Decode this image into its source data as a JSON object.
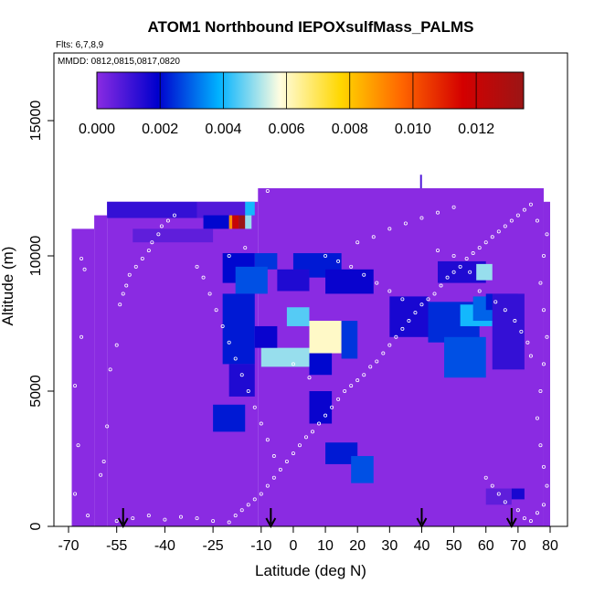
{
  "chart_data": {
    "type": "heatmap",
    "title": "ATOM1 Northbound IEPOXsulfMass_PALMS",
    "flights_label": "Flts: 6,7,8,9",
    "dates_label": "MMDD: 0812,0815,0817,0820",
    "xlabel": "Latitude (deg N)",
    "ylabel": "Altitude (m)",
    "xlim": [
      -70,
      80
    ],
    "ylim": [
      0,
      17500
    ],
    "x_ticks": [
      "-70",
      "-55",
      "-40",
      "-25",
      "-10",
      "0",
      "10",
      "20",
      "30",
      "40",
      "50",
      "60",
      "70",
      "80"
    ],
    "x_tick_values": [
      -70,
      -55,
      -40,
      -25,
      -10,
      0,
      10,
      20,
      30,
      40,
      50,
      60,
      70,
      80
    ],
    "y_ticks": [
      "0",
      "5000",
      "10000",
      "15000"
    ],
    "y_tick_values": [
      0,
      5000,
      10000,
      15000
    ],
    "colorbar": {
      "range": [
        0,
        0.0135
      ],
      "tick_labels": [
        "0.000",
        "0.002",
        "0.004",
        "0.006",
        "0.008",
        "0.010",
        "0.012"
      ],
      "tick_values": [
        0,
        0.002,
        0.004,
        0.006,
        0.008,
        0.01,
        0.012
      ],
      "colors": [
        "#8a2be2",
        "#0000cd",
        "#00b2ff",
        "#fffde0",
        "#ffd700",
        "#ff6600",
        "#d40000",
        "#9b1515"
      ]
    },
    "background_value": 0.0,
    "envelope": [
      {
        "x0": -69,
        "x1": -62,
        "ymax": 11000
      },
      {
        "x0": -62,
        "x1": -58,
        "ymax": 11500
      },
      {
        "x0": -58,
        "x1": -11,
        "ymax": 12000
      },
      {
        "x0": -11,
        "x1": 78,
        "ymax": 12500
      },
      {
        "x0": 78,
        "x1": 80,
        "ymax": 12000
      }
    ],
    "cells": [
      {
        "x0": -58,
        "x1": -30,
        "y0": 11400,
        "y1": 12000,
        "v": 0.0012
      },
      {
        "x0": -30,
        "x1": -15,
        "y0": 11400,
        "y1": 12000,
        "v": 0.0008
      },
      {
        "x0": -28,
        "x1": -20,
        "y0": 11000,
        "y1": 11500,
        "v": 0.002
      },
      {
        "x0": -20,
        "x1": -19,
        "y0": 11000,
        "y1": 11500,
        "v": 0.009
      },
      {
        "x0": -19,
        "x1": -17,
        "y0": 11000,
        "y1": 11500,
        "v": 0.012
      },
      {
        "x0": -17,
        "x1": -15,
        "y0": 11000,
        "y1": 11500,
        "v": 0.0135
      },
      {
        "x0": -15,
        "x1": -13,
        "y0": 11000,
        "y1": 11500,
        "v": 0.005
      },
      {
        "x0": -15,
        "x1": -12,
        "y0": 11500,
        "y1": 12000,
        "v": 0.004
      },
      {
        "x0": -50,
        "x1": -25,
        "y0": 10500,
        "y1": 11000,
        "v": 0.0006
      },
      {
        "x0": -22,
        "x1": -12,
        "y0": 9000,
        "y1": 10100,
        "v": 0.002
      },
      {
        "x0": -12,
        "x1": -5,
        "y0": 9500,
        "y1": 10100,
        "v": 0.0025
      },
      {
        "x0": 0,
        "x1": 15,
        "y0": 9200,
        "y1": 10100,
        "v": 0.0022
      },
      {
        "x0": 10,
        "x1": 25,
        "y0": 8600,
        "y1": 9500,
        "v": 0.0018
      },
      {
        "x0": -18,
        "x1": -8,
        "y0": 8600,
        "y1": 9600,
        "v": 0.0028
      },
      {
        "x0": -5,
        "x1": 5,
        "y0": 8700,
        "y1": 9500,
        "v": 0.0015
      },
      {
        "x0": -22,
        "x1": -12,
        "y0": 6000,
        "y1": 8600,
        "v": 0.0022
      },
      {
        "x0": -2,
        "x1": 5,
        "y0": 7400,
        "y1": 8100,
        "v": 0.0045
      },
      {
        "x0": 5,
        "x1": 15,
        "y0": 6400,
        "y1": 7600,
        "v": 0.006
      },
      {
        "x0": -10,
        "x1": 5,
        "y0": 5900,
        "y1": 6600,
        "v": 0.005
      },
      {
        "x0": 15,
        "x1": 20,
        "y0": 6200,
        "y1": 7600,
        "v": 0.0025
      },
      {
        "x0": -12,
        "x1": -5,
        "y0": 6600,
        "y1": 7400,
        "v": 0.0018
      },
      {
        "x0": 5,
        "x1": 12,
        "y0": 5600,
        "y1": 6400,
        "v": 0.002
      },
      {
        "x0": -20,
        "x1": -12,
        "y0": 4800,
        "y1": 6000,
        "v": 0.0015
      },
      {
        "x0": -25,
        "x1": -15,
        "y0": 3500,
        "y1": 4500,
        "v": 0.0022
      },
      {
        "x0": 5,
        "x1": 12,
        "y0": 3800,
        "y1": 5000,
        "v": 0.0018
      },
      {
        "x0": 10,
        "x1": 20,
        "y0": 2300,
        "y1": 3100,
        "v": 0.0022
      },
      {
        "x0": 18,
        "x1": 25,
        "y0": 1600,
        "y1": 2600,
        "v": 0.0028
      },
      {
        "x0": 30,
        "x1": 42,
        "y0": 7000,
        "y1": 8500,
        "v": 0.0016
      },
      {
        "x0": 42,
        "x1": 58,
        "y0": 6800,
        "y1": 8300,
        "v": 0.0024
      },
      {
        "x0": 47,
        "x1": 60,
        "y0": 5500,
        "y1": 7000,
        "v": 0.0028
      },
      {
        "x0": 52,
        "x1": 62,
        "y0": 7400,
        "y1": 8200,
        "v": 0.004
      },
      {
        "x0": 56,
        "x1": 64,
        "y0": 7600,
        "y1": 8500,
        "v": 0.003
      },
      {
        "x0": 60,
        "x1": 70,
        "y0": 8000,
        "y1": 8600,
        "v": 0.0022
      },
      {
        "x0": 45,
        "x1": 60,
        "y0": 9000,
        "y1": 9800,
        "v": 0.0015
      },
      {
        "x0": 57,
        "x1": 62,
        "y0": 9100,
        "y1": 9700,
        "v": 0.005
      },
      {
        "x0": 62,
        "x1": 72,
        "y0": 5800,
        "y1": 8600,
        "v": 0.0012
      },
      {
        "x0": 60,
        "x1": 68,
        "y0": 800,
        "y1": 1400,
        "v": 0.0006
      },
      {
        "x0": 68,
        "x1": 72,
        "y0": 1000,
        "y1": 1400,
        "v": 0.0016
      }
    ],
    "markers": [
      -53,
      -7,
      40,
      68
    ],
    "flight_points": [
      [
        -68,
        1200
      ],
      [
        -67,
        3000
      ],
      [
        -68,
        5200
      ],
      [
        -66,
        7000
      ],
      [
        -65,
        9500
      ],
      [
        -66,
        9900
      ],
      [
        -64,
        400
      ],
      [
        -60,
        1900
      ],
      [
        -59,
        2400
      ],
      [
        -58,
        3700
      ],
      [
        -57,
        5800
      ],
      [
        -55,
        6700
      ],
      [
        -54,
        8200
      ],
      [
        -53,
        8600
      ],
      [
        -52,
        8900
      ],
      [
        -51,
        9300
      ],
      [
        -49,
        9600
      ],
      [
        -47,
        9900
      ],
      [
        -45,
        10200
      ],
      [
        -44,
        10500
      ],
      [
        -42,
        10800
      ],
      [
        -41,
        11100
      ],
      [
        -39,
        11300
      ],
      [
        -37,
        11500
      ],
      [
        -55,
        200
      ],
      [
        -50,
        300
      ],
      [
        -45,
        400
      ],
      [
        -40,
        250
      ],
      [
        -35,
        350
      ],
      [
        -30,
        300
      ],
      [
        -25,
        200
      ],
      [
        -20,
        150
      ],
      [
        -18,
        400
      ],
      [
        -16,
        600
      ],
      [
        -14,
        800
      ],
      [
        -12,
        1000
      ],
      [
        -10,
        1200
      ],
      [
        -8,
        1500
      ],
      [
        -6,
        1800
      ],
      [
        -4,
        2100
      ],
      [
        -2,
        2400
      ],
      [
        0,
        2700
      ],
      [
        2,
        3000
      ],
      [
        4,
        3300
      ],
      [
        6,
        3500
      ],
      [
        8,
        3800
      ],
      [
        10,
        4100
      ],
      [
        12,
        4400
      ],
      [
        14,
        4700
      ],
      [
        16,
        5000
      ],
      [
        18,
        5200
      ],
      [
        20,
        5400
      ],
      [
        22,
        5600
      ],
      [
        24,
        5900
      ],
      [
        26,
        6100
      ],
      [
        28,
        6400
      ],
      [
        30,
        6700
      ],
      [
        32,
        7000
      ],
      [
        34,
        7300
      ],
      [
        36,
        7600
      ],
      [
        38,
        7900
      ],
      [
        40,
        8200
      ],
      [
        42,
        8400
      ],
      [
        44,
        8600
      ],
      [
        46,
        8900
      ],
      [
        48,
        9200
      ],
      [
        50,
        9400
      ],
      [
        52,
        9600
      ],
      [
        54,
        9900
      ],
      [
        56,
        10100
      ],
      [
        58,
        10300
      ],
      [
        60,
        10500
      ],
      [
        62,
        10700
      ],
      [
        64,
        10900
      ],
      [
        66,
        11100
      ],
      [
        68,
        11300
      ],
      [
        70,
        11500
      ],
      [
        72,
        11700
      ],
      [
        74,
        11900
      ],
      [
        -30,
        9600
      ],
      [
        -28,
        9200
      ],
      [
        -26,
        8600
      ],
      [
        -24,
        8000
      ],
      [
        -22,
        7400
      ],
      [
        -20,
        6800
      ],
      [
        -18,
        6200
      ],
      [
        -16,
        5600
      ],
      [
        -14,
        5000
      ],
      [
        -12,
        4400
      ],
      [
        -10,
        3800
      ],
      [
        -8,
        3200
      ],
      [
        -6,
        2600
      ],
      [
        10,
        10000
      ],
      [
        14,
        9800
      ],
      [
        18,
        9600
      ],
      [
        22,
        9300
      ],
      [
        26,
        9000
      ],
      [
        30,
        8700
      ],
      [
        34,
        8400
      ],
      [
        60,
        1800
      ],
      [
        62,
        1500
      ],
      [
        64,
        1200
      ],
      [
        66,
        900
      ],
      [
        70,
        600
      ],
      [
        72,
        300
      ],
      [
        74,
        200
      ],
      [
        76,
        500
      ],
      [
        78,
        800
      ],
      [
        79,
        1500
      ],
      [
        78,
        2200
      ],
      [
        77,
        3000
      ],
      [
        76,
        4000
      ],
      [
        77,
        5000
      ],
      [
        78,
        6000
      ],
      [
        79,
        7000
      ],
      [
        78,
        8000
      ],
      [
        77,
        9000
      ],
      [
        78,
        10000
      ],
      [
        79,
        10800
      ],
      [
        76,
        11300
      ],
      [
        -12,
        12200
      ],
      [
        -8,
        12400
      ],
      [
        20,
        10500
      ],
      [
        25,
        10700
      ],
      [
        30,
        11000
      ],
      [
        35,
        11200
      ],
      [
        40,
        11400
      ],
      [
        45,
        11600
      ],
      [
        50,
        11800
      ],
      [
        0,
        6000
      ],
      [
        5,
        5500
      ],
      [
        -20,
        10000
      ],
      [
        -15,
        10300
      ],
      [
        45,
        10200
      ],
      [
        50,
        10000
      ],
      [
        55,
        9400
      ],
      [
        58,
        8700
      ],
      [
        63,
        8300
      ],
      [
        66,
        8000
      ],
      [
        69,
        7600
      ],
      [
        71,
        7200
      ],
      [
        73,
        6800
      ],
      [
        74,
        6300
      ]
    ]
  }
}
